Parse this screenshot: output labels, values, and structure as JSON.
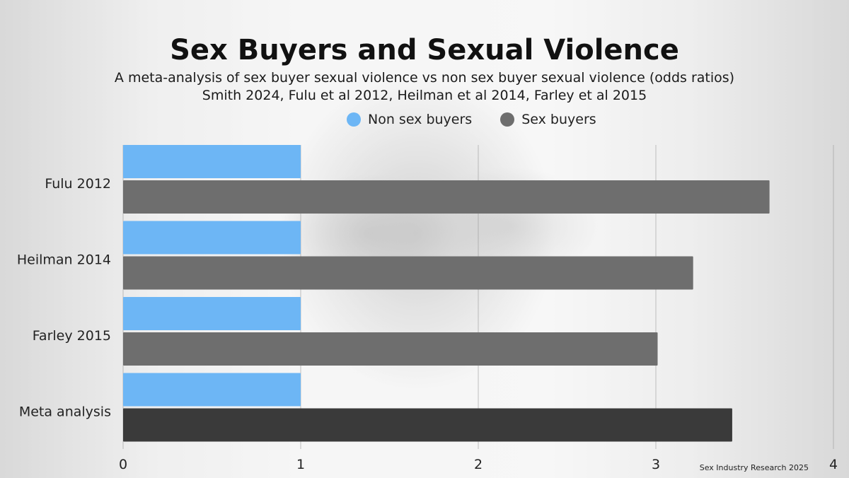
{
  "chart_data": {
    "type": "bar",
    "orientation": "horizontal",
    "title": "Sex Buyers and Sexual Violence",
    "subtitle": [
      "A meta-analysis of sex buyer sexual violence vs non sex buyer sexual violence (odds ratios)",
      "Smith 2024, Fulu et al 2012, Heilman et al 2014, Farley et al 2015"
    ],
    "categories": [
      "Fulu 2012",
      "Heilman 2014",
      "Farley 2015",
      "Meta analysis"
    ],
    "series": [
      {
        "name": "Non sex buyers",
        "values": [
          1,
          1,
          1,
          1
        ],
        "color": "#6db6f5"
      },
      {
        "name": "Sex buyers",
        "values": [
          3.64,
          3.21,
          3.01,
          3.43
        ],
        "color": "#6e6e6e",
        "highlight_color": "#3a3a3a",
        "highlight_index": 3
      }
    ],
    "xlim": [
      0,
      4
    ],
    "xticks": [
      "0",
      "1",
      "2",
      "3",
      "4"
    ],
    "grid": true,
    "legend": "top-center"
  },
  "footer": "Sex Industry Research 2025"
}
